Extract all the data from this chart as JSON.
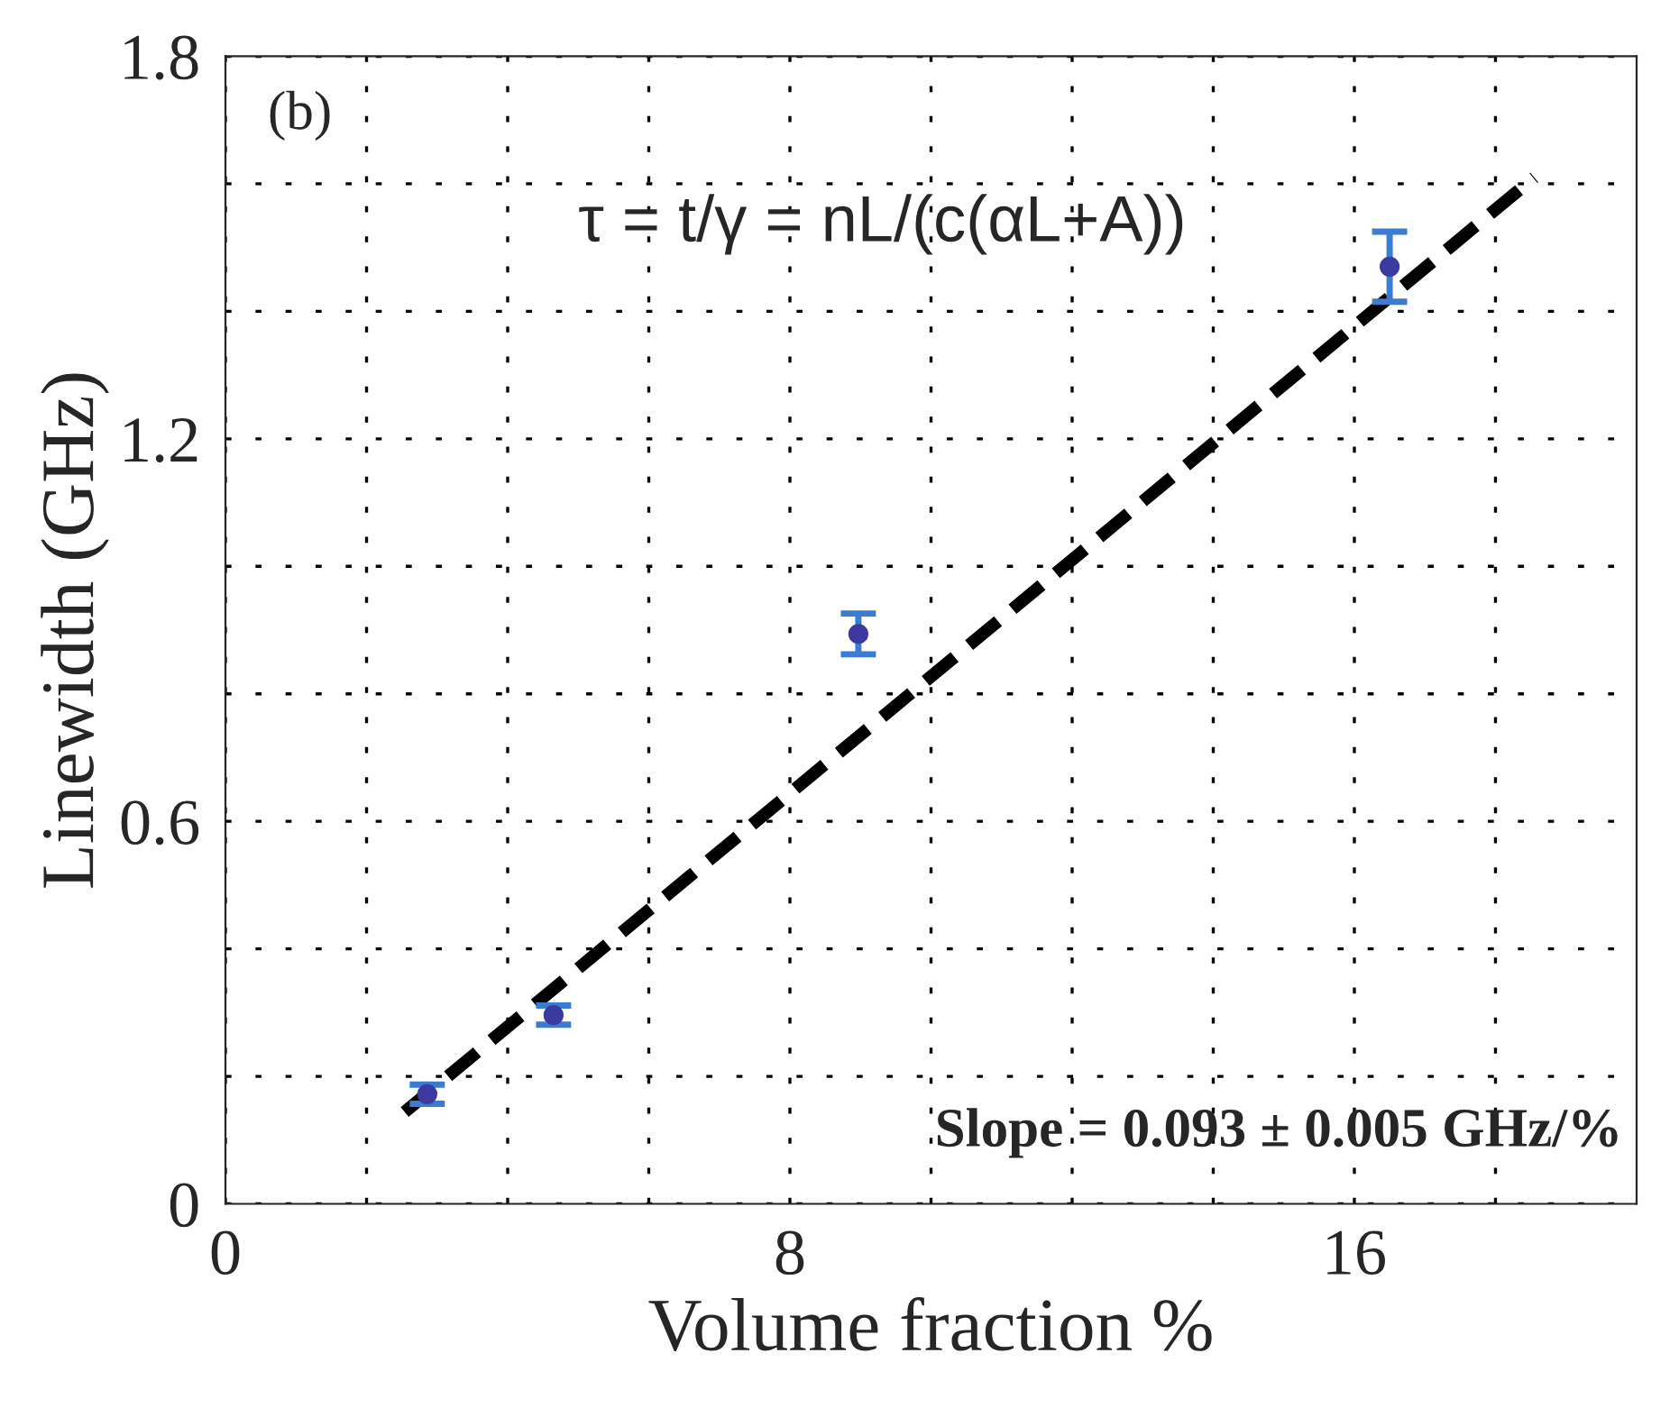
{
  "chart_data": {
    "type": "scatter",
    "xlabel": "Volume fraction %",
    "ylabel": "Linewidth (GHz)",
    "xlim": [
      0,
      20
    ],
    "ylim": [
      0,
      1.8
    ],
    "xticks": [
      {
        "value": 0,
        "label": "0"
      },
      {
        "value": 2,
        "label": null
      },
      {
        "value": 4,
        "label": null
      },
      {
        "value": 6,
        "label": null
      },
      {
        "value": 8,
        "label": "8"
      },
      {
        "value": 10,
        "label": null
      },
      {
        "value": 12,
        "label": null
      },
      {
        "value": 14,
        "label": null
      },
      {
        "value": 16,
        "label": "16"
      },
      {
        "value": 18,
        "label": null
      }
    ],
    "yticks": [
      {
        "value": 0,
        "label": "0"
      },
      {
        "value": 0.2,
        "label": null
      },
      {
        "value": 0.4,
        "label": null
      },
      {
        "value": 0.6,
        "label": "0.6"
      },
      {
        "value": 0.8,
        "label": null
      },
      {
        "value": 1.0,
        "label": null
      },
      {
        "value": 1.2,
        "label": "1.2"
      },
      {
        "value": 1.4,
        "label": null
      },
      {
        "value": 1.6,
        "label": null
      },
      {
        "value": 1.8,
        "label": "1.8"
      }
    ],
    "grid": true,
    "marker": "circle",
    "series": [
      {
        "color": "#3a3aa0",
        "x": [
          2.86,
          4.65,
          8.97,
          16.5
        ],
        "values": [
          0.172,
          0.296,
          0.894,
          1.47
        ],
        "errors": [
          0.015,
          0.015,
          0.032,
          0.055
        ]
      },
      {
        "type": "line",
        "color": "#000000",
        "line_style": "dashed",
        "marker": "none",
        "x": [
          2.54,
          18.55
        ],
        "values": [
          0.144,
          1.61
        ]
      }
    ],
    "annotations": [
      {
        "text": "(b)"
      },
      {
        "text": "τ = t/γ = nL/(c(αL+A))"
      },
      {
        "text": "Slope = 0.093 ± 0.005 GHz/%"
      }
    ]
  }
}
